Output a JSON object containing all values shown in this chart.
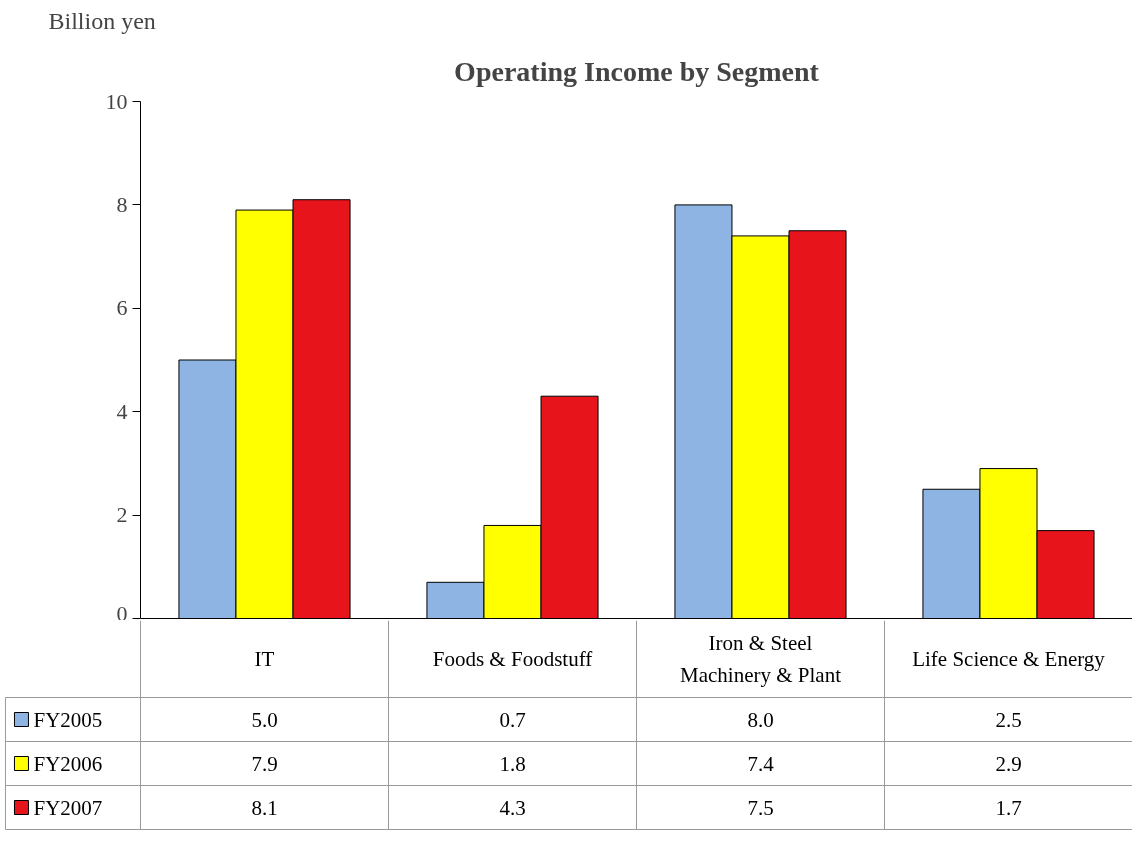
{
  "chart_data": {
    "type": "bar",
    "title": "Operating Income by Segment",
    "ylabel": "Billion yen",
    "categories": [
      "IT",
      "Foods & Foodstuff",
      "Iron & Steel\nMachinery & Plant",
      "Life Science & Energy"
    ],
    "series": [
      {
        "name": "FY2005",
        "color": "#8db4e2",
        "values": [
          5.0,
          0.7,
          8.0,
          2.5
        ],
        "value_labels": [
          "5.0",
          "0.7",
          "8.0",
          "2.5"
        ]
      },
      {
        "name": "FY2006",
        "color": "#ffff00",
        "values": [
          7.9,
          1.8,
          7.4,
          2.9
        ],
        "value_labels": [
          "7.9",
          "1.8",
          "7.4",
          "2.9"
        ]
      },
      {
        "name": "FY2007",
        "color": "#e8141c",
        "values": [
          8.1,
          4.3,
          7.5,
          1.7
        ],
        "value_labels": [
          "8.1",
          "4.3",
          "7.5",
          "1.7"
        ]
      }
    ],
    "ylim": [
      0,
      10
    ],
    "yticks": [
      0,
      2,
      4,
      6,
      8,
      10
    ],
    "legend": "bottom left"
  }
}
